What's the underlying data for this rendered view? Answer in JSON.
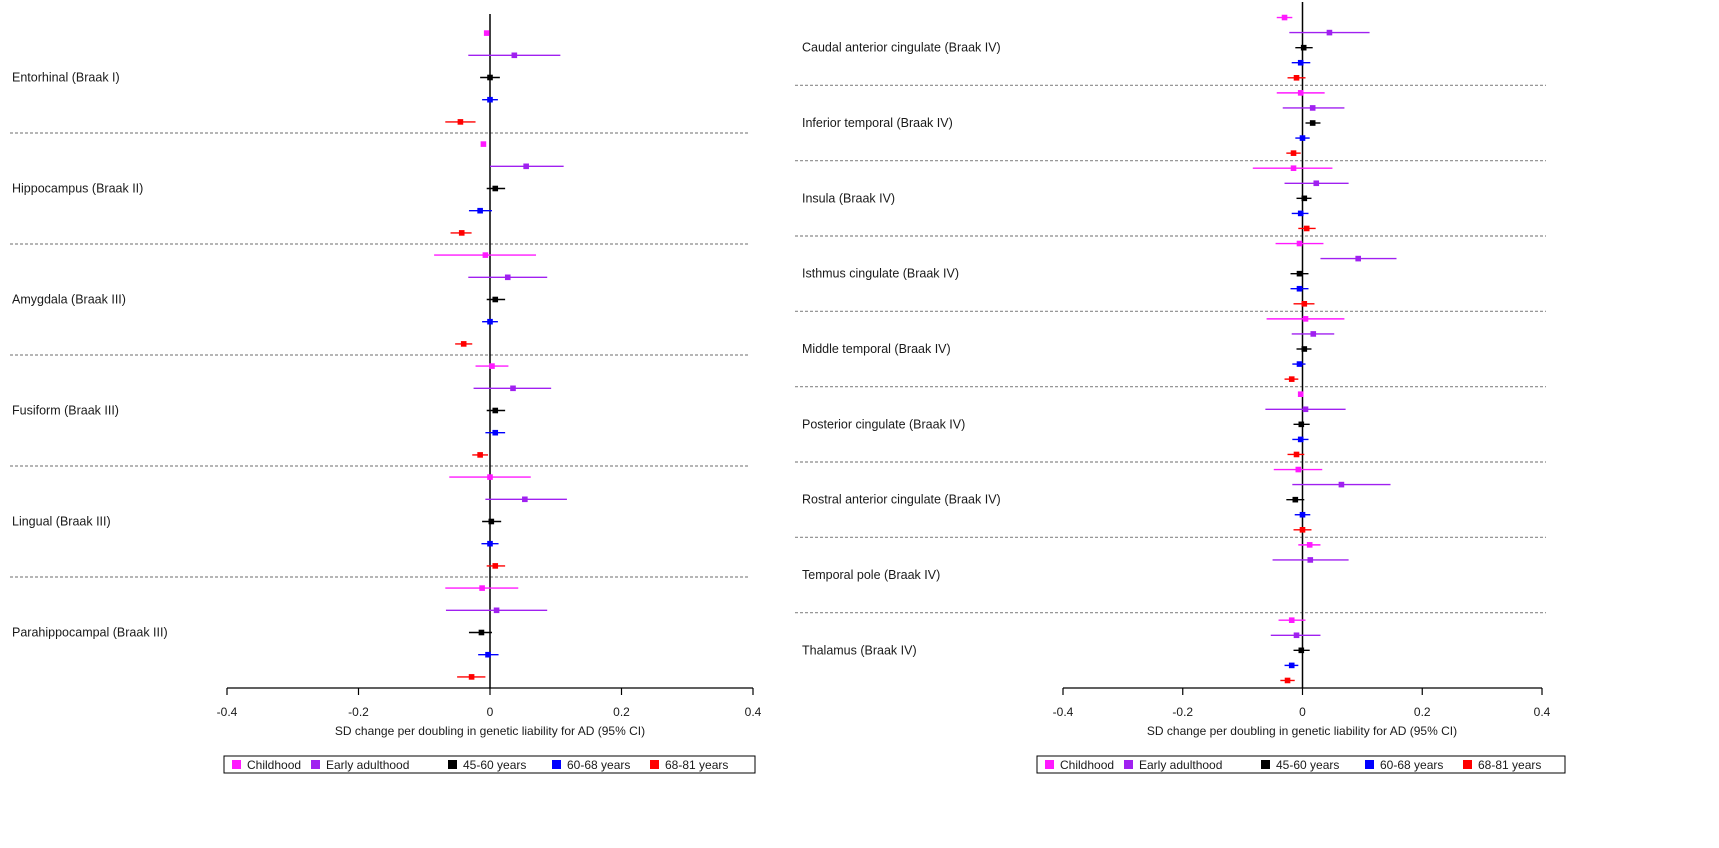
{
  "colors": {
    "Childhood": "#ff19ff",
    "Early adulthood": "#a020f0",
    "45-60 years": "#000000",
    "60-68 years": "#0000ff",
    "68-81 years": "#ff0000"
  },
  "chart_data": [
    {
      "type": "forest",
      "xlabel": "SD change per doubling in genetic liability for AD (95% CI)",
      "xlim": [
        -0.4,
        0.4
      ],
      "xticks": [
        "-0.4",
        "-0.2",
        "0",
        "0.2",
        "0.4"
      ],
      "legend": [
        "Childhood",
        "Early adulthood",
        "45-60 years",
        "60-68 years",
        "68-81 years"
      ],
      "legend_position": "bottom",
      "regions": [
        {
          "label": "Entorhinal (Braak I)",
          "estimates": [
            {
              "group": "Childhood",
              "est": -0.005,
              "lo": -0.008,
              "hi": -0.002
            },
            {
              "group": "Early adulthood",
              "est": 0.037,
              "lo": -0.033,
              "hi": 0.107
            },
            {
              "group": "45-60 years",
              "est": 0.0,
              "lo": -0.015,
              "hi": 0.015
            },
            {
              "group": "60-68 years",
              "est": 0.0,
              "lo": -0.012,
              "hi": 0.012
            },
            {
              "group": "68-81 years",
              "est": -0.045,
              "lo": -0.068,
              "hi": -0.022
            }
          ]
        },
        {
          "label": "Hippocampus (Braak II)",
          "estimates": [
            {
              "group": "Childhood",
              "est": -0.01,
              "lo": -0.013,
              "hi": -0.007
            },
            {
              "group": "Early adulthood",
              "est": 0.055,
              "lo": 0.0,
              "hi": 0.112
            },
            {
              "group": "45-60 years",
              "est": 0.008,
              "lo": -0.005,
              "hi": 0.023
            },
            {
              "group": "60-68 years",
              "est": -0.015,
              "lo": -0.032,
              "hi": 0.003
            },
            {
              "group": "68-81 years",
              "est": -0.043,
              "lo": -0.06,
              "hi": -0.028
            }
          ]
        },
        {
          "label": "Amygdala (Braak III)",
          "estimates": [
            {
              "group": "Childhood",
              "est": -0.007,
              "lo": -0.085,
              "hi": 0.07
            },
            {
              "group": "Early adulthood",
              "est": 0.027,
              "lo": -0.033,
              "hi": 0.087
            },
            {
              "group": "45-60 years",
              "est": 0.008,
              "lo": -0.005,
              "hi": 0.023
            },
            {
              "group": "60-68 years",
              "est": 0.0,
              "lo": -0.012,
              "hi": 0.012
            },
            {
              "group": "68-81 years",
              "est": -0.04,
              "lo": -0.053,
              "hi": -0.027
            }
          ]
        },
        {
          "label": "Fusiform (Braak III)",
          "estimates": [
            {
              "group": "Childhood",
              "est": 0.003,
              "lo": -0.022,
              "hi": 0.028
            },
            {
              "group": "Early adulthood",
              "est": 0.035,
              "lo": -0.025,
              "hi": 0.093
            },
            {
              "group": "45-60 years",
              "est": 0.008,
              "lo": -0.005,
              "hi": 0.023
            },
            {
              "group": "60-68 years",
              "est": 0.008,
              "lo": -0.007,
              "hi": 0.023
            },
            {
              "group": "68-81 years",
              "est": -0.015,
              "lo": -0.027,
              "hi": -0.003
            }
          ]
        },
        {
          "label": "Lingual (Braak III)",
          "estimates": [
            {
              "group": "Childhood",
              "est": 0.0,
              "lo": -0.062,
              "hi": 0.062
            },
            {
              "group": "Early adulthood",
              "est": 0.053,
              "lo": -0.007,
              "hi": 0.117
            },
            {
              "group": "45-60 years",
              "est": 0.002,
              "lo": -0.012,
              "hi": 0.017
            },
            {
              "group": "60-68 years",
              "est": 0.0,
              "lo": -0.013,
              "hi": 0.013
            },
            {
              "group": "68-81 years",
              "est": 0.008,
              "lo": -0.005,
              "hi": 0.023
            }
          ]
        },
        {
          "label": "Parahippocampal (Braak III)",
          "estimates": [
            {
              "group": "Childhood",
              "est": -0.012,
              "lo": -0.068,
              "hi": 0.043
            },
            {
              "group": "Early adulthood",
              "est": 0.01,
              "lo": -0.067,
              "hi": 0.087
            },
            {
              "group": "45-60 years",
              "est": -0.013,
              "lo": -0.032,
              "hi": 0.003
            },
            {
              "group": "60-68 years",
              "est": -0.003,
              "lo": -0.018,
              "hi": 0.013
            },
            {
              "group": "68-81 years",
              "est": -0.028,
              "lo": -0.05,
              "hi": -0.007
            }
          ]
        }
      ]
    },
    {
      "type": "forest",
      "xlabel": "SD change per doubling in genetic liability for AD (95% CI)",
      "xlim": [
        -0.4,
        0.4
      ],
      "xticks": [
        "-0.4",
        "-0.2",
        "0",
        "0.2",
        "0.4"
      ],
      "legend": [
        "Childhood",
        "Early adulthood",
        "45-60 years",
        "60-68 years",
        "68-81 years"
      ],
      "legend_position": "bottom",
      "regions": [
        {
          "label": "Caudal anterior cingulate (Braak IV)",
          "estimates": [
            {
              "group": "Childhood",
              "est": -0.03,
              "lo": -0.043,
              "hi": -0.017
            },
            {
              "group": "Early adulthood",
              "est": 0.045,
              "lo": -0.022,
              "hi": 0.112
            },
            {
              "group": "45-60 years",
              "est": 0.002,
              "lo": -0.012,
              "hi": 0.017
            },
            {
              "group": "60-68 years",
              "est": -0.003,
              "lo": -0.018,
              "hi": 0.013
            },
            {
              "group": "68-81 years",
              "est": -0.01,
              "lo": -0.025,
              "hi": 0.005
            }
          ]
        },
        {
          "label": "Inferior temporal (Braak IV)",
          "estimates": [
            {
              "group": "Childhood",
              "est": -0.003,
              "lo": -0.043,
              "hi": 0.037
            },
            {
              "group": "Early adulthood",
              "est": 0.017,
              "lo": -0.033,
              "hi": 0.07
            },
            {
              "group": "45-60 years",
              "est": 0.017,
              "lo": 0.005,
              "hi": 0.03
            },
            {
              "group": "60-68 years",
              "est": 0.0,
              "lo": -0.012,
              "hi": 0.012
            },
            {
              "group": "68-81 years",
              "est": -0.015,
              "lo": -0.027,
              "hi": -0.003
            }
          ]
        },
        {
          "label": "Insula (Braak IV)",
          "estimates": [
            {
              "group": "Childhood",
              "est": -0.015,
              "lo": -0.083,
              "hi": 0.05
            },
            {
              "group": "Early adulthood",
              "est": 0.023,
              "lo": -0.03,
              "hi": 0.077
            },
            {
              "group": "45-60 years",
              "est": 0.003,
              "lo": -0.01,
              "hi": 0.015
            },
            {
              "group": "60-68 years",
              "est": -0.003,
              "lo": -0.018,
              "hi": 0.01
            },
            {
              "group": "68-81 years",
              "est": 0.007,
              "lo": -0.007,
              "hi": 0.022
            }
          ]
        },
        {
          "label": "Isthmus cingulate (Braak IV)",
          "estimates": [
            {
              "group": "Childhood",
              "est": -0.005,
              "lo": -0.045,
              "hi": 0.035
            },
            {
              "group": "Early adulthood",
              "est": 0.093,
              "lo": 0.03,
              "hi": 0.157
            },
            {
              "group": "45-60 years",
              "est": -0.005,
              "lo": -0.02,
              "hi": 0.01
            },
            {
              "group": "60-68 years",
              "est": -0.005,
              "lo": -0.02,
              "hi": 0.01
            },
            {
              "group": "68-81 years",
              "est": 0.003,
              "lo": -0.015,
              "hi": 0.02
            }
          ]
        },
        {
          "label": "Middle temporal (Braak IV)",
          "estimates": [
            {
              "group": "Childhood",
              "est": 0.005,
              "lo": -0.06,
              "hi": 0.07
            },
            {
              "group": "Early adulthood",
              "est": 0.018,
              "lo": -0.018,
              "hi": 0.053
            },
            {
              "group": "45-60 years",
              "est": 0.003,
              "lo": -0.01,
              "hi": 0.015
            },
            {
              "group": "60-68 years",
              "est": -0.005,
              "lo": -0.017,
              "hi": 0.005
            },
            {
              "group": "68-81 years",
              "est": -0.018,
              "lo": -0.03,
              "hi": -0.007
            }
          ]
        },
        {
          "label": "Posterior cingulate (Braak IV)",
          "estimates": [
            {
              "group": "Childhood",
              "est": -0.003,
              "lo": -0.007,
              "hi": 0.0
            },
            {
              "group": "Early adulthood",
              "est": 0.005,
              "lo": -0.062,
              "hi": 0.072
            },
            {
              "group": "45-60 years",
              "est": -0.002,
              "lo": -0.015,
              "hi": 0.012
            },
            {
              "group": "60-68 years",
              "est": -0.003,
              "lo": -0.017,
              "hi": 0.01
            },
            {
              "group": "68-81 years",
              "est": -0.01,
              "lo": -0.025,
              "hi": 0.003
            }
          ]
        },
        {
          "label": "Rostral anterior cingulate (Braak IV)",
          "estimates": [
            {
              "group": "Childhood",
              "est": -0.007,
              "lo": -0.048,
              "hi": 0.033
            },
            {
              "group": "Early adulthood",
              "est": 0.065,
              "lo": -0.017,
              "hi": 0.147
            },
            {
              "group": "45-60 years",
              "est": -0.012,
              "lo": -0.027,
              "hi": 0.003
            },
            {
              "group": "60-68 years",
              "est": 0.0,
              "lo": -0.013,
              "hi": 0.013
            },
            {
              "group": "68-81 years",
              "est": 0.0,
              "lo": -0.015,
              "hi": 0.015
            }
          ]
        },
        {
          "label": "Temporal pole (Braak IV)",
          "estimates": [
            {
              "group": "Childhood",
              "est": 0.012,
              "lo": -0.007,
              "hi": 0.03
            },
            {
              "group": "Early adulthood",
              "est": 0.013,
              "lo": -0.05,
              "hi": 0.077
            }
          ]
        },
        {
          "label": "Thalamus (Braak IV)",
          "estimates": [
            {
              "group": "Childhood",
              "est": -0.018,
              "lo": -0.04,
              "hi": 0.005
            },
            {
              "group": "Early adulthood",
              "est": -0.01,
              "lo": -0.053,
              "hi": 0.03
            },
            {
              "group": "45-60 years",
              "est": -0.002,
              "lo": -0.015,
              "hi": 0.012
            },
            {
              "group": "60-68 years",
              "est": -0.018,
              "lo": -0.03,
              "hi": -0.007
            },
            {
              "group": "68-81 years",
              "est": -0.025,
              "lo": -0.037,
              "hi": -0.013
            }
          ]
        }
      ]
    }
  ]
}
